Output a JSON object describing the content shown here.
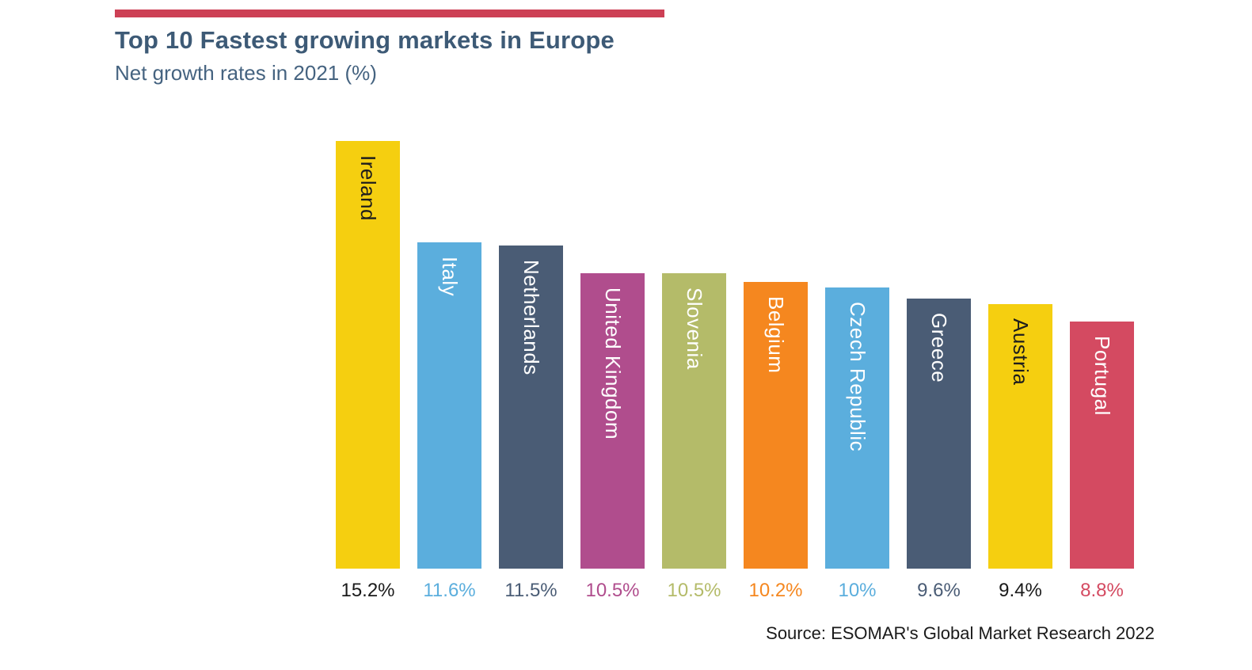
{
  "page": {
    "title": "Top 10 Fastest growing markets in Europe",
    "subtitle": "Net growth rates in 2021 (%)",
    "source": "Source: ESOMAR's Global Market Research 2022"
  },
  "colors": {
    "accent_line": "#CD4055",
    "title_text": "#3D5A76",
    "subtitle_text": "#456380",
    "source_text": "#1A1A1A"
  },
  "chart_data": {
    "type": "bar",
    "orientation": "vertical",
    "title": "Top 10 Fastest growing markets in Europe",
    "subtitle": "Net growth rates in 2021 (%)",
    "categories": [
      "Ireland",
      "Italy",
      "Netherlands",
      "United Kingdom",
      "Slovenia",
      "Belgium",
      "Czech Republic",
      "Greece",
      "Austria",
      "Portugal"
    ],
    "values": [
      15.2,
      11.6,
      11.5,
      10.5,
      10.5,
      10.2,
      10,
      9.6,
      9.4,
      8.8
    ],
    "value_labels": [
      "15.2%",
      "11.6%",
      "11.5%",
      "10.5%",
      "10.5%",
      "10.2%",
      "10%",
      "9.6%",
      "9.4%",
      "8.8%"
    ],
    "bar_colors": [
      "#F5CF10",
      "#5BAEDD",
      "#4A5C75",
      "#B04D8D",
      "#B4BB69",
      "#F5871F",
      "#5BAEDD",
      "#4A5C75",
      "#F5CF10",
      "#D44A61"
    ],
    "bar_label_colors": [
      "#1D1D1D",
      "#FFFFFF",
      "#FFFFFF",
      "#FFFFFF",
      "#FFFFFF",
      "#FFFFFF",
      "#FFFFFF",
      "#FFFFFF",
      "#1D1D1D",
      "#FFFFFF"
    ],
    "value_label_colors": [
      "#1A1A1A",
      "#5BAEDD",
      "#4A5C75",
      "#B04D8D",
      "#B4BB69",
      "#F5871F",
      "#5BAEDD",
      "#4A5C75",
      "#1A1A1A",
      "#D44A61"
    ],
    "ylim": [
      0,
      15.2
    ],
    "grid": false,
    "legend": false,
    "category_labels_position": "inside-bar-vertical",
    "value_labels_position": "below-bar"
  }
}
